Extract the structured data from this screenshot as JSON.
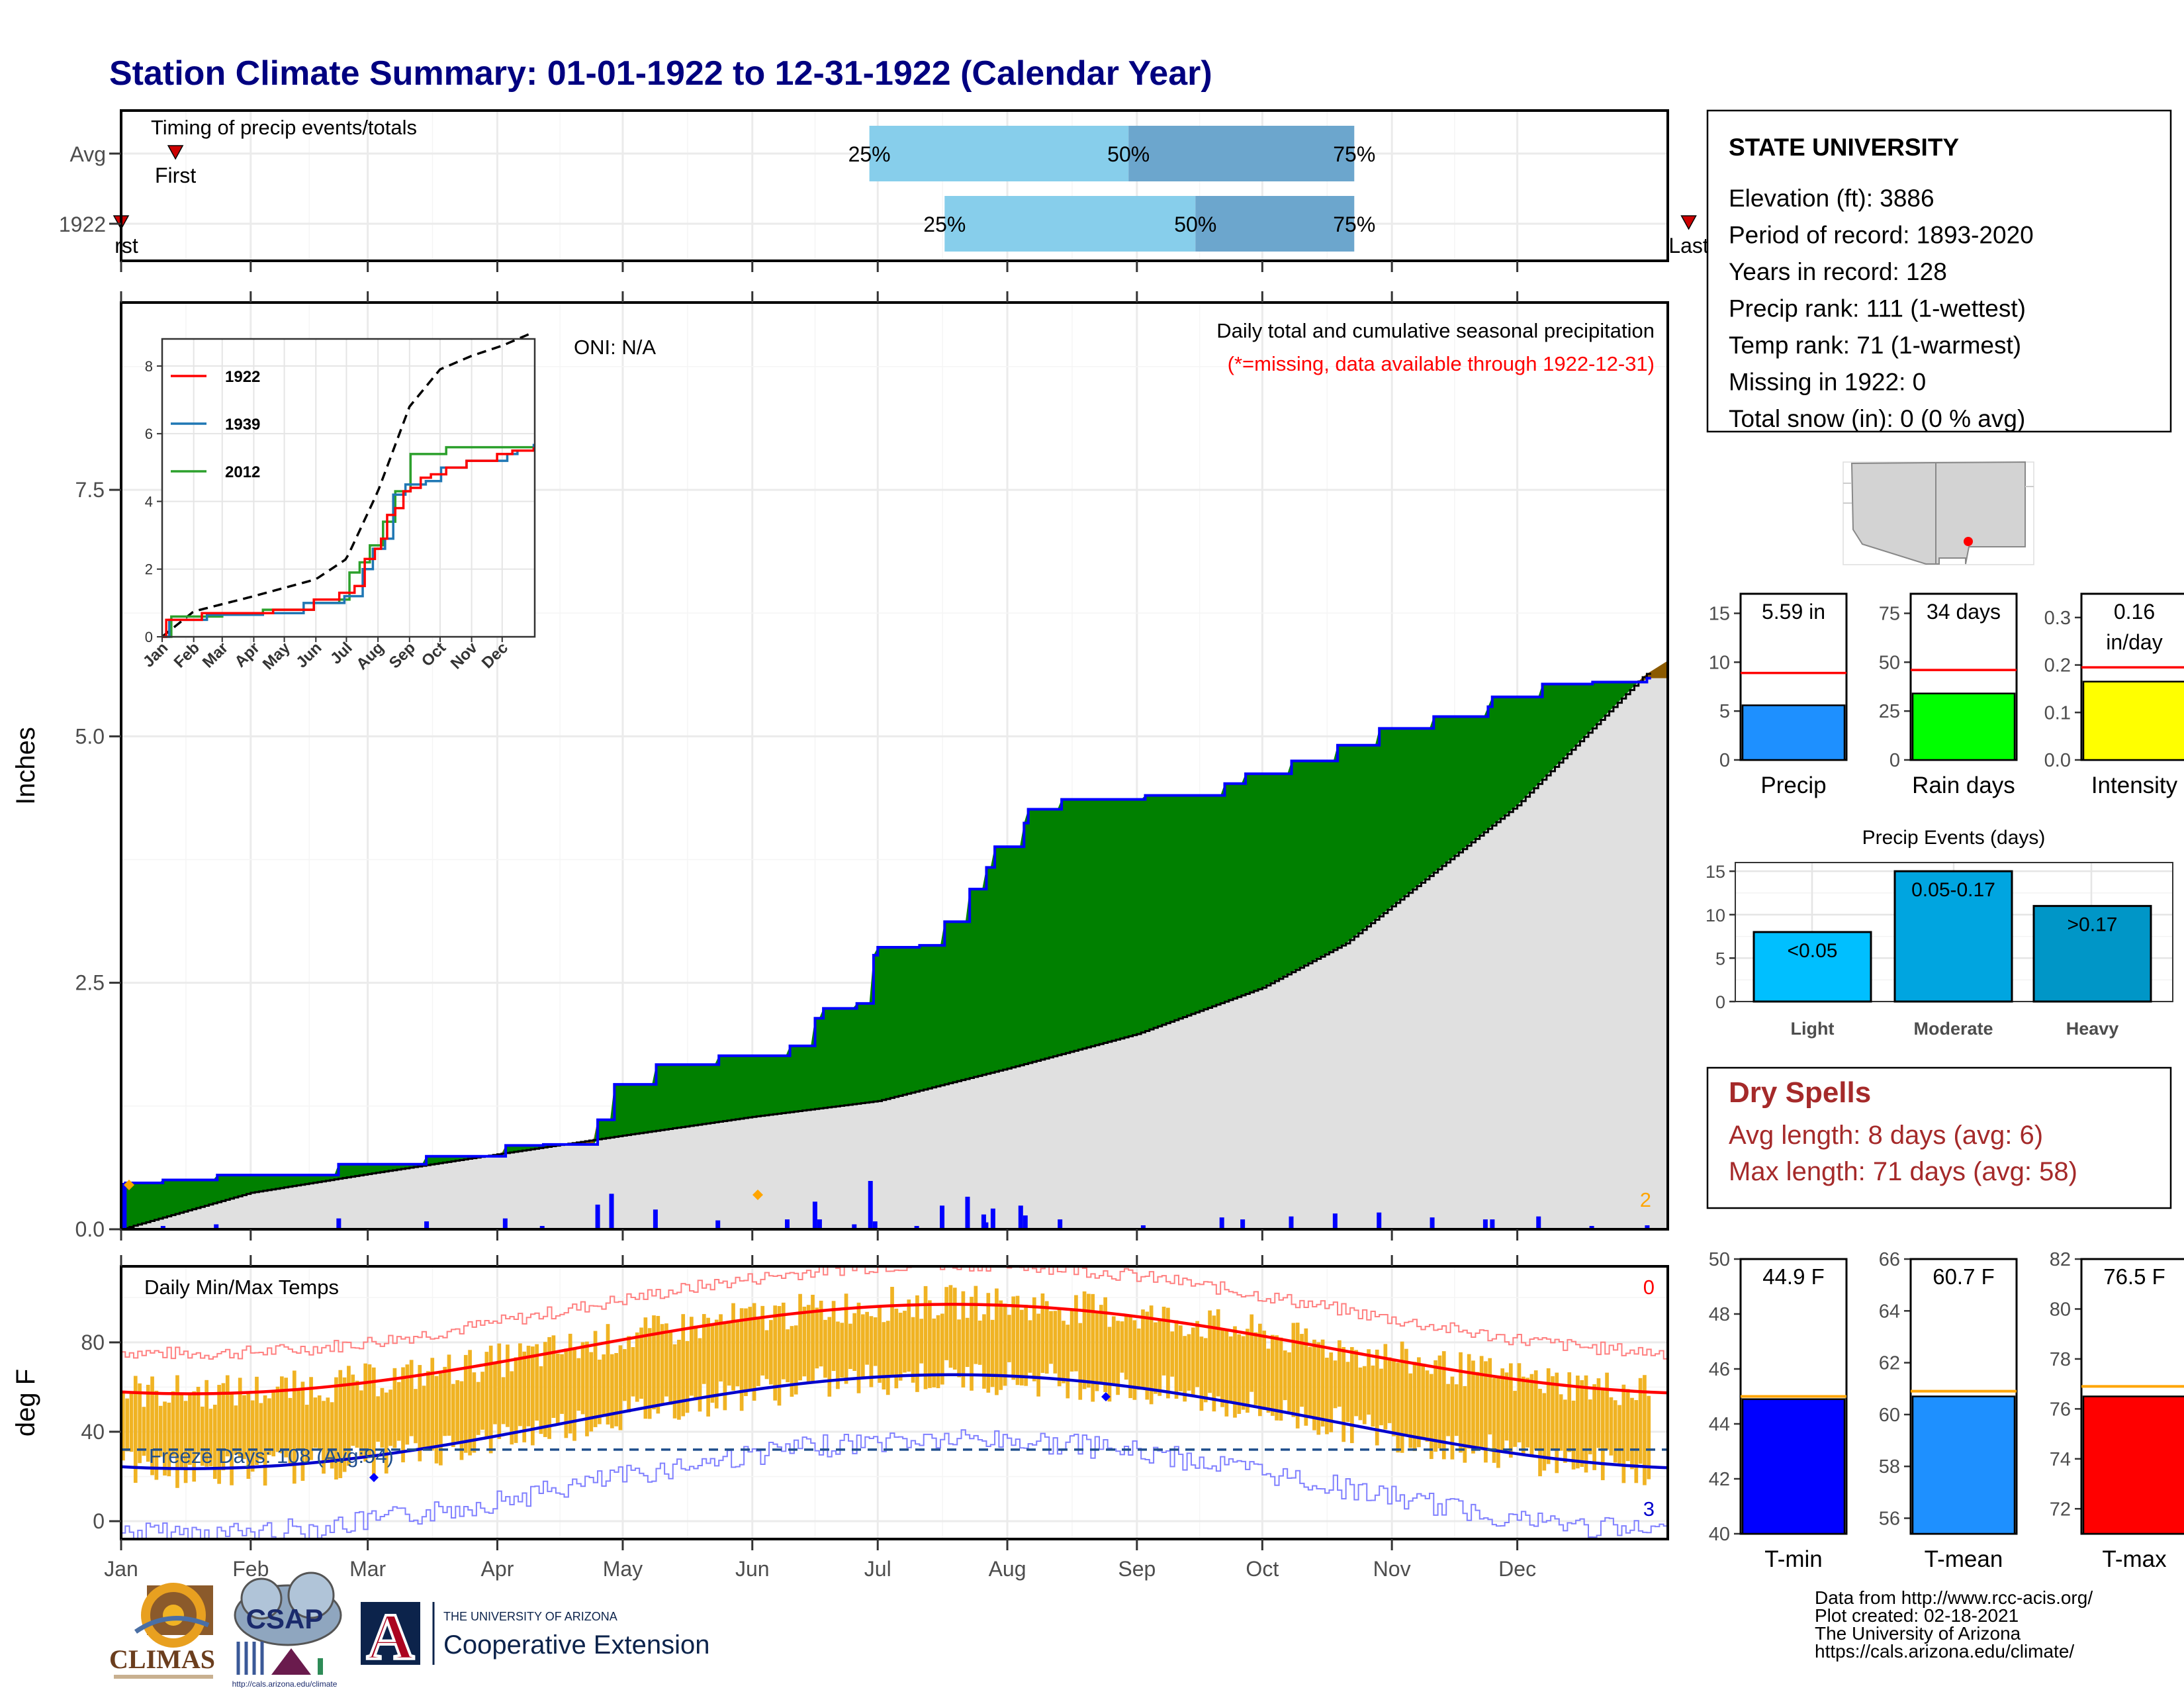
{
  "title": "Station Climate Summary: 01-01-1922 to 12-31-1922 (Calendar Year)",
  "colors": {
    "title": "#000080",
    "brown": "#8B5A00",
    "green": "#008000",
    "gray_fill": "#E0E0E0",
    "blue_line": "#0000FF",
    "gold": "#F0B323",
    "q_light": "#87CEEB",
    "q_dark": "#6CA6CD",
    "red": "#FF0000",
    "dry_spell": "#A52A2A",
    "yellow": "#FFFF00",
    "ltblue": "#00BFFF",
    "medblue": "#00A5E0",
    "darkblue": "#0096C7",
    "orange": "#FFA500"
  },
  "months": [
    "Jan",
    "Feb",
    "Mar",
    "Apr",
    "May",
    "Jun",
    "Jul",
    "Aug",
    "Sep",
    "Oct",
    "Nov",
    "Dec"
  ],
  "timing": {
    "label": "Timing of precip events/totals",
    "rows": [
      "Avg",
      "1922"
    ],
    "first_label": "First",
    "first_label_cut": "rst",
    "last_label": "Last",
    "pct_labels": [
      "25%",
      "50%",
      "75%"
    ],
    "avg": {
      "first_doy": 14,
      "q25_doy": 180,
      "q50_doy": 242,
      "q75_doy": 296,
      "last_doy": 394
    },
    "year": {
      "first_doy": 1,
      "q25_doy": 198,
      "q50_doy": 258,
      "q75_doy": 296,
      "last_doy": 376
    }
  },
  "precip_panel": {
    "ylabel": "Inches",
    "ticks": [
      "0.0",
      "2.5",
      "5.0",
      "7.5"
    ],
    "ylim": [
      0,
      9.4
    ],
    "caption": "Daily total and cumulative seasonal precipitation",
    "caption_missing": "(*=missing, data available through 1922-12-31)",
    "oni": "ONI: N/A",
    "corner_count": "2"
  },
  "inset": {
    "ticks": [
      "0",
      "2",
      "4",
      "6",
      "8"
    ],
    "month_labels": [
      "Jan",
      "Feb",
      "Mar",
      "Apr",
      "May",
      "Jun",
      "Jul",
      "Aug",
      "Sep",
      "Oct",
      "Nov",
      "Dec"
    ],
    "legend": [
      "1922",
      "1939",
      "2012"
    ],
    "legend_colors": [
      "#FF0000",
      "#1F77B4",
      "#2CA02C"
    ]
  },
  "temp_panel": {
    "ylabel": "deg F",
    "label": "Daily Min/Max Temps",
    "ticks": [
      "0",
      "40",
      "80"
    ],
    "freeze": "Freeze Days: 108 (Avg:94)",
    "freeze_line": 32,
    "count_top": "0",
    "count_bottom": "3"
  },
  "station": {
    "name": "STATE UNIVERSITY",
    "lines": [
      "Elevation (ft): 3886",
      "Period of record: 1893-2020",
      "Years in record: 128",
      "Precip rank: 111 (1-wettest)",
      "Temp rank: 71 (1-warmest)",
      "Missing in 1922: 0",
      "Total snow (in): 0 (0 % avg)"
    ]
  },
  "summary_bars": [
    {
      "label": "Precip",
      "value_label": "5.59 in",
      "value": 5.59,
      "avg": 8.9,
      "ticks": [
        "0",
        "5",
        "10",
        "15"
      ],
      "tick_vals": [
        0,
        5,
        10,
        15
      ],
      "ymax": 17,
      "color": "#1E90FF"
    },
    {
      "label": "Rain days",
      "value_label": "34 days",
      "value": 34,
      "avg": 46,
      "ticks": [
        "0",
        "25",
        "50",
        "75"
      ],
      "tick_vals": [
        0,
        25,
        50,
        75
      ],
      "ymax": 85,
      "color": "#00FF00"
    },
    {
      "label": "Intensity",
      "value_label": "0.16",
      "value_label2": "in/day",
      "value": 0.165,
      "avg": 0.195,
      "ticks": [
        "0.0",
        "0.1",
        "0.2",
        "0.3"
      ],
      "tick_vals": [
        0,
        0.1,
        0.2,
        0.3
      ],
      "ymax": 0.35,
      "color": "#FFFF00"
    }
  ],
  "precip_events": {
    "title": "Precip Events (days)",
    "ticks": [
      "0",
      "5",
      "10",
      "15"
    ],
    "categories": [
      "Light",
      "Moderate",
      "Heavy"
    ],
    "labels": [
      "<0.05",
      "0.05-0.17",
      ">0.17"
    ],
    "values": [
      8,
      15,
      11
    ],
    "colors": [
      "#00BFFF",
      "#00A5E0",
      "#0096C7"
    ]
  },
  "dry_spells": {
    "title": "Dry Spells",
    "avg": "Avg length: 8 days (avg: 6)",
    "max": "Max length: 71 days (avg: 58)"
  },
  "temp_bars": [
    {
      "label": "T-min",
      "value_label": "44.9 F",
      "value": 44.9,
      "avg": 45.0,
      "min": 40,
      "max": 50,
      "ticks": [
        "40",
        "42",
        "44",
        "46",
        "48",
        "50"
      ],
      "tick_vals": [
        40,
        42,
        44,
        46,
        48,
        50
      ],
      "color": "#0000FF"
    },
    {
      "label": "T-mean",
      "value_label": "60.7 F",
      "value": 60.7,
      "avg": 60.9,
      "min": 55.4,
      "max": 66,
      "ticks": [
        "56",
        "58",
        "60",
        "62",
        "64",
        "66"
      ],
      "tick_vals": [
        56,
        58,
        60,
        62,
        64,
        66
      ],
      "color": "#1E90FF"
    },
    {
      "label": "T-max",
      "value_label": "76.5 F",
      "value": 76.5,
      "avg": 76.9,
      "min": 71,
      "max": 82,
      "ticks": [
        "72",
        "74",
        "76",
        "78",
        "80",
        "82"
      ],
      "tick_vals": [
        72,
        74,
        76,
        78,
        80,
        82
      ],
      "color": "#FF0000"
    }
  ],
  "footer": {
    "lines": [
      "Data from http://www.rcc-acis.org/",
      "Plot created: 02-18-2021",
      "The University of Arizona",
      "https://cals.arizona.edu/climate/"
    ],
    "climas": "CLIMAS",
    "csap": "CSAP",
    "ua_small": "THE UNIVERSITY OF ARIZONA",
    "ua_big": "Cooperative Extension",
    "ua_letter": "A"
  }
}
